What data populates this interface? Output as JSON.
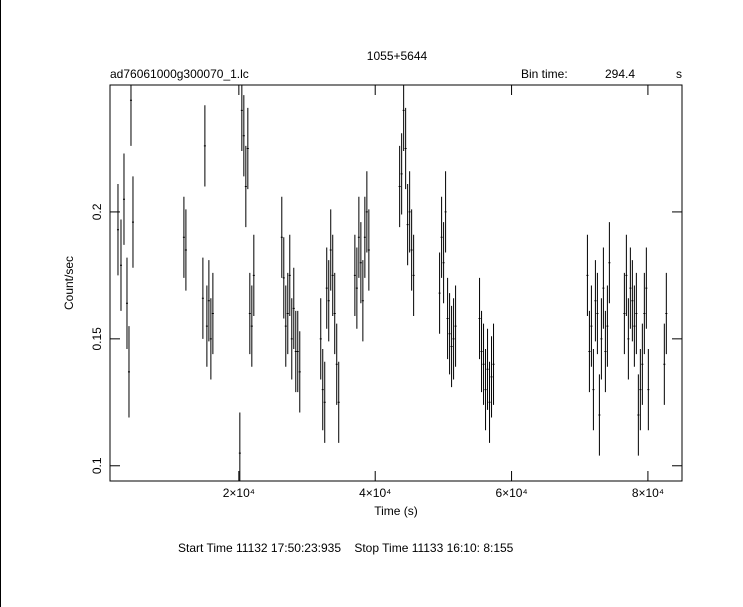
{
  "chart_data": {
    "type": "errorbar",
    "title": "1055+5644",
    "subtitle": "ad76061000g300070_1.lc",
    "bin_label": "Bin time:",
    "bin_value": "294.4",
    "bin_unit": "s",
    "xlabel": "Time (s)",
    "ylabel": "Count/sec",
    "footer": "Start Time 11132 17:50:23:935    Stop Time 11133 16:10: 8:155",
    "color": "#000000",
    "xlim": [
      1100,
      85000
    ],
    "ylim": [
      0.094,
      0.25
    ],
    "xticks": [
      {
        "value": 20000,
        "label": "2×10⁴"
      },
      {
        "value": 40000,
        "label": "4×10⁴"
      },
      {
        "value": 60000,
        "label": "6×10⁴"
      },
      {
        "value": 80000,
        "label": "8×10⁴"
      }
    ],
    "yticks": [
      0.1,
      0.15,
      0.2
    ],
    "x": [
      2270,
      2712,
      3151,
      3591,
      3884,
      4177,
      4470,
      11941,
      12234,
      14725,
      15018,
      15311,
      15604,
      15897,
      16190,
      20145,
      20438,
      20731,
      21024,
      21317,
      21610,
      21903,
      22196,
      26298,
      26591,
      26884,
      27177,
      27470,
      27763,
      28056,
      28349,
      28642,
      28935,
      32012,
      32305,
      32598,
      32891,
      33184,
      33477,
      33770,
      34063,
      34356,
      34649,
      37018,
      37311,
      37604,
      37897,
      38190,
      38483,
      38776,
      39069,
      43585,
      43878,
      44171,
      44464,
      44757,
      45050,
      45343,
      45636,
      49445,
      49738,
      50031,
      50324,
      50617,
      50910,
      51203,
      51496,
      51789,
      55305,
      55598,
      55891,
      56184,
      56477,
      56770,
      57063,
      57356,
      71127,
      71420,
      71713,
      72006,
      72299,
      72592,
      72885,
      73178,
      73471,
      73764,
      74057,
      74350,
      76548,
      76841,
      77134,
      77427,
      77720,
      78013,
      78306,
      78599,
      78892,
      79185,
      79478,
      79771,
      80064,
      82408,
      82701
    ],
    "values": [
      0.193,
      0.179,
      0.205,
      0.164,
      0.137,
      0.244,
      0.196,
      0.19,
      0.185,
      0.166,
      0.226,
      0.155,
      0.165,
      0.15,
      0.16,
      0.105,
      0.24,
      0.23,
      0.21,
      0.225,
      0.16,
      0.155,
      0.175,
      0.19,
      0.174,
      0.155,
      0.16,
      0.175,
      0.15,
      0.162,
      0.145,
      0.145,
      0.137,
      0.15,
      0.13,
      0.125,
      0.17,
      0.165,
      0.185,
      0.175,
      0.16,
      0.14,
      0.125,
      0.175,
      0.17,
      0.19,
      0.18,
      0.165,
      0.19,
      0.2,
      0.185,
      0.21,
      0.215,
      0.24,
      0.225,
      0.195,
      0.2,
      0.185,
      0.175,
      0.168,
      0.19,
      0.18,
      0.2,
      0.158,
      0.152,
      0.147,
      0.15,
      0.155,
      0.158,
      0.145,
      0.14,
      0.13,
      0.138,
      0.125,
      0.135,
      0.14,
      0.175,
      0.145,
      0.155,
      0.13,
      0.165,
      0.16,
      0.12,
      0.15,
      0.17,
      0.145,
      0.155,
      0.18,
      0.16,
      0.175,
      0.15,
      0.17,
      0.165,
      0.155,
      0.16,
      0.12,
      0.13,
      0.14,
      0.16,
      0.17,
      0.13,
      0.14,
      0.16
    ],
    "errors": [
      0.018,
      0.018,
      0.018,
      0.018,
      0.018,
      0.018,
      0.018,
      0.016,
      0.016,
      0.016,
      0.016,
      0.016,
      0.016,
      0.016,
      0.016,
      0.016,
      0.016,
      0.016,
      0.016,
      0.016,
      0.016,
      0.016,
      0.016,
      0.016,
      0.016,
      0.016,
      0.016,
      0.016,
      0.016,
      0.016,
      0.016,
      0.016,
      0.016,
      0.016,
      0.016,
      0.016,
      0.016,
      0.016,
      0.016,
      0.016,
      0.016,
      0.016,
      0.016,
      0.016,
      0.016,
      0.016,
      0.016,
      0.016,
      0.016,
      0.016,
      0.016,
      0.016,
      0.016,
      0.016,
      0.016,
      0.016,
      0.016,
      0.016,
      0.016,
      0.016,
      0.016,
      0.016,
      0.016,
      0.016,
      0.016,
      0.016,
      0.016,
      0.016,
      0.016,
      0.016,
      0.016,
      0.016,
      0.016,
      0.016,
      0.016,
      0.016,
      0.016,
      0.016,
      0.016,
      0.016,
      0.016,
      0.016,
      0.016,
      0.016,
      0.016,
      0.016,
      0.016,
      0.016,
      0.016,
      0.016,
      0.016,
      0.016,
      0.016,
      0.016,
      0.016,
      0.016,
      0.016,
      0.016,
      0.016,
      0.016,
      0.016,
      0.016,
      0.016
    ]
  }
}
